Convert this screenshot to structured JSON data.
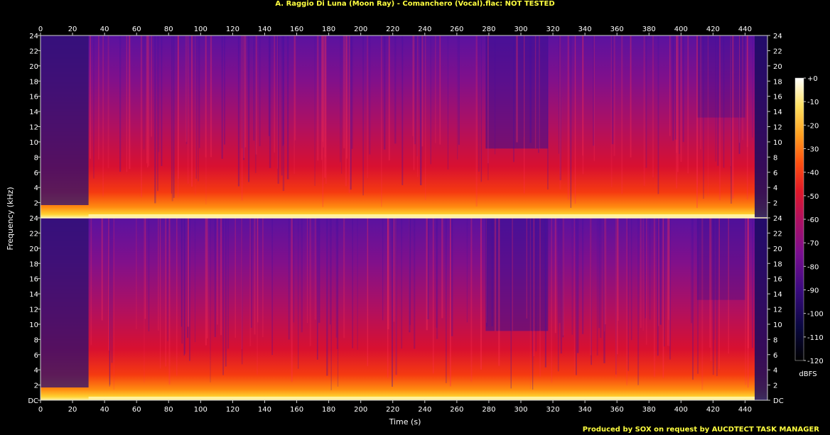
{
  "title": "A. Raggio Di Luna (Moon Ray) - Comanchero (Vocal).flac: NOT TESTED",
  "credit": "Produced by SOX on request by AUCDTECT TASK MANAGER",
  "colors": {
    "title": "#ffff40",
    "axis": "#cfcfcf",
    "background": "#000000"
  },
  "chart_data": {
    "type": "heatmap",
    "title": "A. Raggio Di Luna (Moon Ray) - Comanchero (Vocal).flac: NOT TESTED",
    "xlabel": "Time (s)",
    "ylabel": "Frequency (kHz)",
    "xlim": [
      0,
      454
    ],
    "ylim": [
      0,
      24
    ],
    "x_ticks": [
      "0",
      "20",
      "40",
      "60",
      "80",
      "100",
      "120",
      "140",
      "160",
      "180",
      "200",
      "220",
      "240",
      "260",
      "280",
      "300",
      "320",
      "340",
      "360",
      "380",
      "400",
      "420",
      "440"
    ],
    "y_ticks": [
      "DC",
      "2",
      "4",
      "6",
      "8",
      "10",
      "12",
      "14",
      "16",
      "18",
      "20",
      "22",
      "24"
    ],
    "channels": [
      "Channel 1",
      "Channel 2"
    ],
    "colorbar": {
      "label": "dBFS",
      "range": [
        -120,
        0
      ],
      "ticks": [
        "+0",
        "-10",
        "-20",
        "-30",
        "-40",
        "-50",
        "-60",
        "-70",
        "-80",
        "-90",
        "-100",
        "-110",
        "-120"
      ]
    },
    "grid": false
  }
}
